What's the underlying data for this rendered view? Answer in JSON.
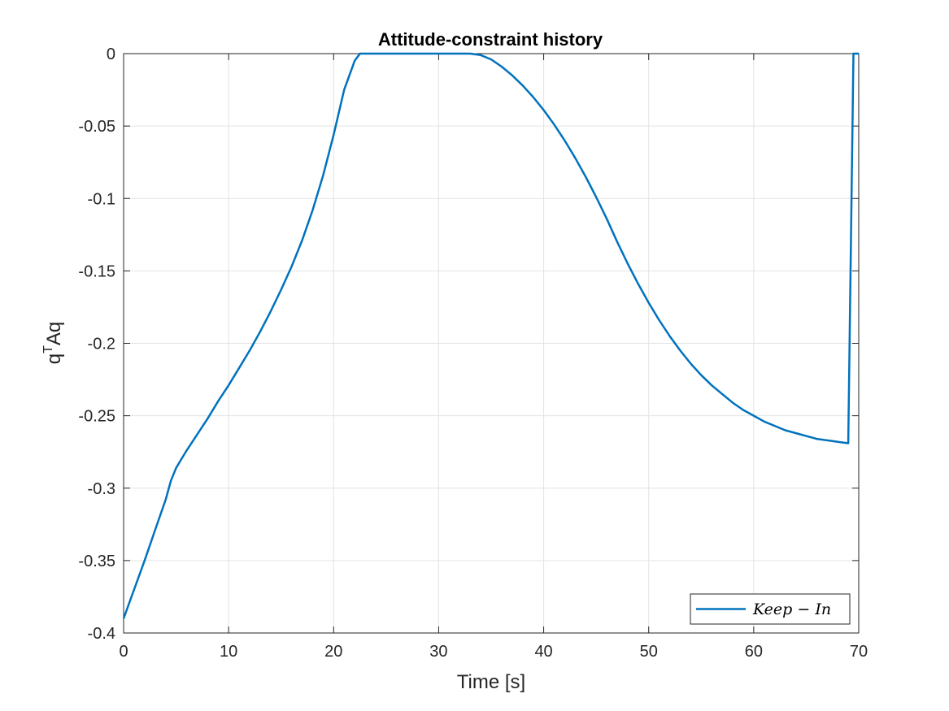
{
  "chart_data": {
    "type": "line",
    "title": "Attitude-constraint history",
    "xlabel": "Time [s]",
    "ylabel": "q",
    "ylabel_sup": "T",
    "ylabel_end": "Aq",
    "xlim": [
      0,
      70
    ],
    "ylim": [
      -0.4,
      0
    ],
    "xticks": [
      0,
      10,
      20,
      30,
      40,
      50,
      60,
      70
    ],
    "xtick_labels": [
      "0",
      "10",
      "20",
      "30",
      "40",
      "50",
      "60",
      "70"
    ],
    "yticks": [
      -0.4,
      -0.35,
      -0.3,
      -0.25,
      -0.2,
      -0.15,
      -0.1,
      -0.05,
      0
    ],
    "ytick_labels": [
      "-0.4",
      "-0.35",
      "-0.3",
      "-0.25",
      "-0.2",
      "-0.15",
      "-0.1",
      "-0.05",
      "0"
    ],
    "grid": true,
    "legend_position": "bottom-right",
    "color": "#0072BD",
    "series": [
      {
        "name": "Keep − In",
        "x": [
          0,
          1,
          2,
          3,
          4,
          4.5,
          5,
          5.5,
          6,
          7,
          8,
          9,
          10,
          11,
          12,
          13,
          14,
          15,
          16,
          17,
          18,
          19,
          20,
          21,
          22,
          22.5,
          23,
          25,
          28,
          30,
          32,
          33,
          34,
          35,
          36,
          37,
          38,
          39,
          40,
          41,
          42,
          43,
          44,
          45,
          46,
          47,
          48,
          49,
          50,
          51,
          52,
          53,
          54,
          55,
          56,
          57,
          58,
          59,
          60,
          61,
          62,
          63,
          64,
          65,
          66,
          67,
          68,
          69,
          69.5,
          70
        ],
        "y": [
          -0.39,
          -0.37,
          -0.35,
          -0.329,
          -0.308,
          -0.295,
          -0.286,
          -0.28,
          -0.274,
          -0.263,
          -0.252,
          -0.24,
          -0.229,
          -0.217,
          -0.205,
          -0.192,
          -0.178,
          -0.163,
          -0.147,
          -0.129,
          -0.108,
          -0.084,
          -0.056,
          -0.025,
          -0.005,
          0,
          0,
          0,
          0,
          0,
          0,
          0,
          -0.001,
          -0.004,
          -0.009,
          -0.015,
          -0.022,
          -0.03,
          -0.039,
          -0.049,
          -0.06,
          -0.072,
          -0.085,
          -0.099,
          -0.114,
          -0.13,
          -0.145,
          -0.159,
          -0.172,
          -0.184,
          -0.195,
          -0.205,
          -0.214,
          -0.222,
          -0.229,
          -0.235,
          -0.241,
          -0.246,
          -0.25,
          -0.254,
          -0.257,
          -0.26,
          -0.262,
          -0.264,
          -0.266,
          -0.267,
          -0.268,
          -0.269,
          0,
          0
        ]
      }
    ]
  }
}
